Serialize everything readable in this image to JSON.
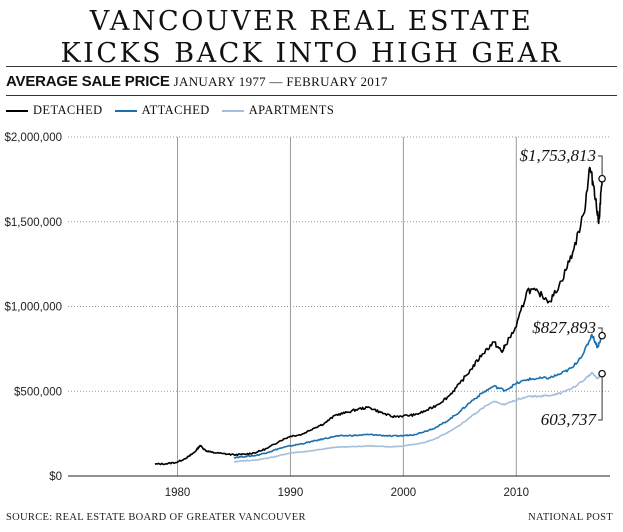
{
  "header": {
    "title_line1": "VANCOUVER REAL ESTATE",
    "title_line2": "KICKS BACK INTO HIGH GEAR",
    "subtitle_bold": "AVERAGE SALE PRICE",
    "subtitle_light": "JANUARY 1977 — FEBRUARY 2017"
  },
  "footer": {
    "source": "SOURCE: REAL ESTATE BOARD OF GREATER VANCOUVER",
    "credit": "NATIONAL POST"
  },
  "chart_data": {
    "type": "line",
    "title": "AVERAGE SALE PRICE",
    "subtitle": "JANUARY 1977 — FEBRUARY 2017",
    "xlabel": "",
    "ylabel": "",
    "x_ticks": [
      1980,
      1990,
      2000,
      2010
    ],
    "y_ticks": [
      0,
      500000,
      1000000,
      1500000,
      2000000
    ],
    "y_tick_labels": [
      "$0",
      "$500,000",
      "$1,000,000",
      "$1,500,000",
      "$2,000,000"
    ],
    "xlim": [
      1970.3,
      2018.3
    ],
    "ylim": [
      0,
      2000000
    ],
    "grid": "dotted",
    "legend_position": "top-left",
    "series": [
      {
        "name": "DETACHED",
        "color": "#000000",
        "points": [
          [
            1978.0,
            70000
          ],
          [
            1979.0,
            72000
          ],
          [
            1980.0,
            82000
          ],
          [
            1981.0,
            115000
          ],
          [
            1981.5,
            140000
          ],
          [
            1982.0,
            180000
          ],
          [
            1982.5,
            150000
          ],
          [
            1983.0,
            140000
          ],
          [
            1984.0,
            132000
          ],
          [
            1985.0,
            125000
          ],
          [
            1986.0,
            128000
          ],
          [
            1987.0,
            140000
          ],
          [
            1988.0,
            165000
          ],
          [
            1989.0,
            205000
          ],
          [
            1990.0,
            235000
          ],
          [
            1991.0,
            245000
          ],
          [
            1992.0,
            280000
          ],
          [
            1993.0,
            310000
          ],
          [
            1994.0,
            360000
          ],
          [
            1995.0,
            375000
          ],
          [
            1996.0,
            395000
          ],
          [
            1997.0,
            405000
          ],
          [
            1998.0,
            375000
          ],
          [
            1999.0,
            350000
          ],
          [
            2000.0,
            355000
          ],
          [
            2001.0,
            360000
          ],
          [
            2002.0,
            385000
          ],
          [
            2003.0,
            420000
          ],
          [
            2004.0,
            470000
          ],
          [
            2005.0,
            545000
          ],
          [
            2006.0,
            630000
          ],
          [
            2007.0,
            720000
          ],
          [
            2008.0,
            790000
          ],
          [
            2008.75,
            730000
          ],
          [
            2009.0,
            770000
          ],
          [
            2010.0,
            880000
          ],
          [
            2011.0,
            1100000
          ],
          [
            2012.0,
            1080000
          ],
          [
            2013.0,
            1030000
          ],
          [
            2014.0,
            1150000
          ],
          [
            2015.0,
            1320000
          ],
          [
            2016.0,
            1550000
          ],
          [
            2016.5,
            1820000
          ],
          [
            2016.9,
            1700000
          ],
          [
            2017.3,
            1490000
          ],
          [
            2017.6,
            1753813
          ]
        ]
      },
      {
        "name": "ATTACHED",
        "color": "#1a6faf",
        "points": [
          [
            1985.0,
            110000
          ],
          [
            1986.0,
            115000
          ],
          [
            1987.0,
            122000
          ],
          [
            1988.0,
            140000
          ],
          [
            1989.0,
            162000
          ],
          [
            1990.0,
            178000
          ],
          [
            1991.0,
            190000
          ],
          [
            1992.0,
            205000
          ],
          [
            1993.0,
            220000
          ],
          [
            1994.0,
            235000
          ],
          [
            1995.0,
            238000
          ],
          [
            1996.0,
            240000
          ],
          [
            1997.0,
            245000
          ],
          [
            1998.0,
            240000
          ],
          [
            1999.0,
            235000
          ],
          [
            2000.0,
            238000
          ],
          [
            2001.0,
            245000
          ],
          [
            2002.0,
            265000
          ],
          [
            2003.0,
            290000
          ],
          [
            2004.0,
            330000
          ],
          [
            2005.0,
            380000
          ],
          [
            2006.0,
            440000
          ],
          [
            2007.0,
            490000
          ],
          [
            2008.0,
            530000
          ],
          [
            2009.0,
            505000
          ],
          [
            2010.0,
            545000
          ],
          [
            2011.0,
            570000
          ],
          [
            2012.0,
            575000
          ],
          [
            2013.0,
            580000
          ],
          [
            2014.0,
            605000
          ],
          [
            2015.0,
            640000
          ],
          [
            2016.0,
            730000
          ],
          [
            2016.7,
            835000
          ],
          [
            2017.2,
            760000
          ],
          [
            2017.6,
            827893
          ]
        ]
      },
      {
        "name": "APARTMENTS",
        "color": "#a3bfdc",
        "points": [
          [
            1985.0,
            85000
          ],
          [
            1986.0,
            90000
          ],
          [
            1987.0,
            95000
          ],
          [
            1988.0,
            105000
          ],
          [
            1989.0,
            120000
          ],
          [
            1990.0,
            135000
          ],
          [
            1991.0,
            142000
          ],
          [
            1992.0,
            150000
          ],
          [
            1993.0,
            160000
          ],
          [
            1994.0,
            170000
          ],
          [
            1995.0,
            172000
          ],
          [
            1996.0,
            175000
          ],
          [
            1997.0,
            178000
          ],
          [
            1998.0,
            175000
          ],
          [
            1999.0,
            172000
          ],
          [
            2000.0,
            178000
          ],
          [
            2001.0,
            185000
          ],
          [
            2002.0,
            200000
          ],
          [
            2003.0,
            225000
          ],
          [
            2004.0,
            260000
          ],
          [
            2005.0,
            300000
          ],
          [
            2006.0,
            350000
          ],
          [
            2007.0,
            400000
          ],
          [
            2008.0,
            440000
          ],
          [
            2009.0,
            420000
          ],
          [
            2010.0,
            450000
          ],
          [
            2011.0,
            470000
          ],
          [
            2012.0,
            470000
          ],
          [
            2013.0,
            475000
          ],
          [
            2014.0,
            490000
          ],
          [
            2015.0,
            520000
          ],
          [
            2016.0,
            565000
          ],
          [
            2016.7,
            610000
          ],
          [
            2017.2,
            575000
          ],
          [
            2017.6,
            603737
          ]
        ]
      }
    ],
    "annotations": [
      {
        "series": "DETACHED",
        "label": "$1,753,813",
        "x": 2017.6,
        "y": 1753813
      },
      {
        "series": "ATTACHED",
        "label": "$827,893",
        "x": 2017.6,
        "y": 827893
      },
      {
        "series": "APARTMENTS",
        "label": "603,737",
        "x": 2017.6,
        "y": 603737
      }
    ]
  }
}
